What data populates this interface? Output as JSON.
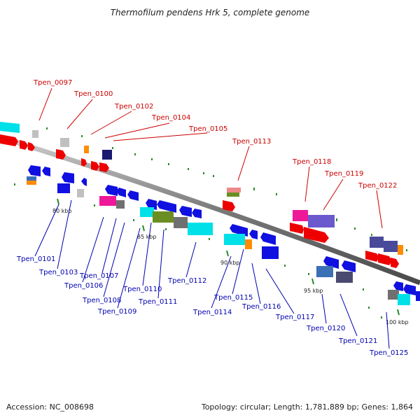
{
  "title": "Thermofilum pendens Hrk 5, complete genome",
  "footer": {
    "accession": "Accession: NC_008698",
    "summary": "Topology: circular; Length: 1,781,889 bp; Genes: 1,864"
  },
  "scale_labels": [
    "80 kbp",
    "85 kbp",
    "90 kbp",
    "95 kbp",
    "100 kbp"
  ],
  "gene_labels_top": [
    "Tpen_0097",
    "Tpen_0100",
    "Tpen_0102",
    "Tpen_0104",
    "Tpen_0105",
    "Tpen_0113",
    "Tpen_0118",
    "Tpen_0119",
    "Tpen_0122"
  ],
  "gene_labels_bottom": [
    "Tpen_0101",
    "Tpen_0103",
    "Tpen_0106",
    "Tpen_0107",
    "Tpen_0108",
    "Tpen_0109",
    "Tpen_0110",
    "Tpen_0111",
    "Tpen_0112",
    "Tpen_0114",
    "Tpen_0115",
    "Tpen_0116",
    "Tpen_0117",
    "Tpen_0120",
    "Tpen_0121",
    "Tpen_0125"
  ],
  "colors": {
    "backbone": "#8a8a8a",
    "red_label": "#cc0000",
    "blue_label": "#0000b0",
    "gene_red": "#ee0000",
    "gene_blue": "#1010e0",
    "gene_cyan": "#00e0e8",
    "gene_magenta": "#ee1899",
    "gene_olive": "#6b8e23",
    "gene_gray": "#707070",
    "gene_orange": "#ff8c00",
    "gene_navy": "#1a1a70",
    "gene_slate": "#4a4a9a",
    "tick_green": "#2a8a2a"
  }
}
